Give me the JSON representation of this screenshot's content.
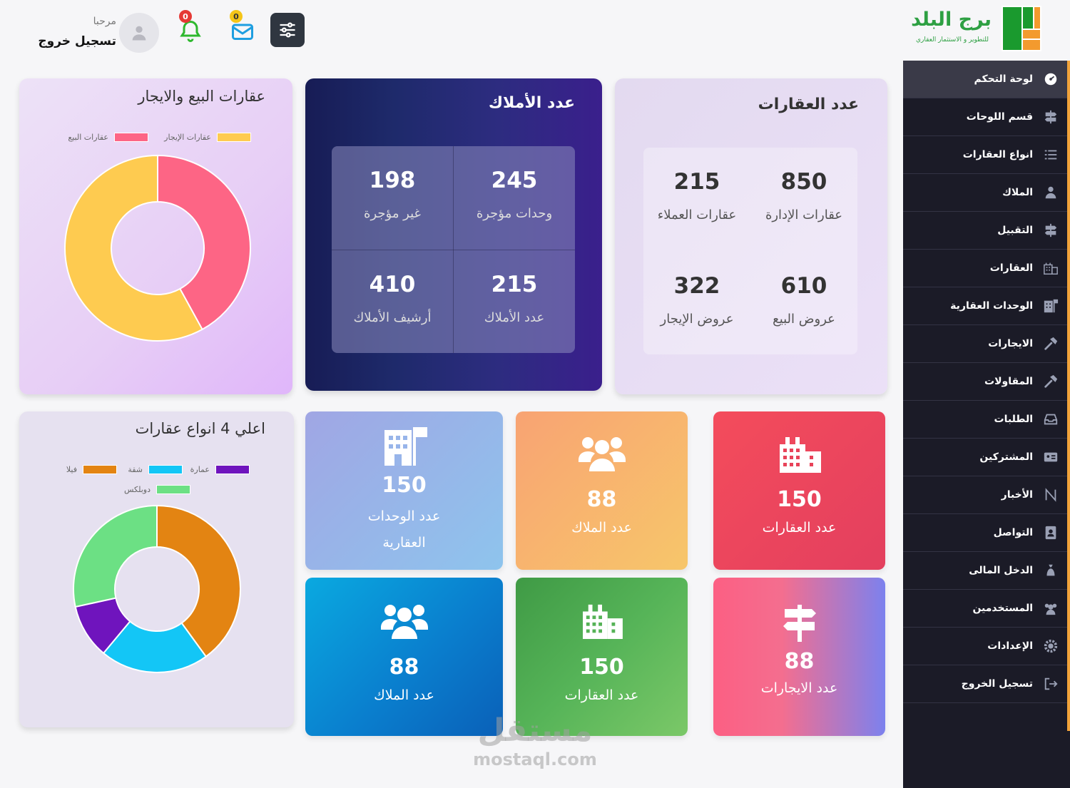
{
  "brand": {
    "name": "برج البلد",
    "tagline": "للتطوير و الاستثمار العقاري",
    "colors": {
      "green": "#2ea043",
      "orange": "#f39a2e"
    }
  },
  "header": {
    "greeting": "مرحبا",
    "logout": "تسجيل خروج",
    "notifications_count": "0",
    "messages_count": "0"
  },
  "sidebar": {
    "items": [
      {
        "label": "لوحة التحكم",
        "icon": "dashboard-icon"
      },
      {
        "label": "قسم اللوحات",
        "icon": "signpost-icon"
      },
      {
        "label": "انواع العقارات",
        "icon": "list-icon"
      },
      {
        "label": "الملاك",
        "icon": "user-icon"
      },
      {
        "label": "التقبيل",
        "icon": "signpost-icon"
      },
      {
        "label": "العقارات",
        "icon": "buildings-icon"
      },
      {
        "label": "الوحدات العقارية",
        "icon": "building-flag-icon"
      },
      {
        "label": "الايجارات",
        "icon": "hammer-icon"
      },
      {
        "label": "المقاولات",
        "icon": "hammer-icon"
      },
      {
        "label": "الطلبات",
        "icon": "inbox-icon"
      },
      {
        "label": "المشتركين",
        "icon": "id-card-icon"
      },
      {
        "label": "الأخبار",
        "icon": "news-icon"
      },
      {
        "label": "التواصل",
        "icon": "contact-book-icon"
      },
      {
        "label": "الدخل المالى",
        "icon": "money-bag-icon"
      },
      {
        "label": "المستخدمين",
        "icon": "users-icon"
      },
      {
        "label": "الإعدادات",
        "icon": "gear-icon"
      },
      {
        "label": "تسجيل الخروج",
        "icon": "logout-icon"
      }
    ]
  },
  "properties_card": {
    "title": "عدد العقارات",
    "stats": [
      {
        "value": "850",
        "label": "عقارات الإدارة"
      },
      {
        "value": "215",
        "label": "عقارات العملاء"
      },
      {
        "value": "610",
        "label": "عروض البيع"
      },
      {
        "value": "322",
        "label": "عروض الإيجار"
      }
    ]
  },
  "owners_card": {
    "title": "عدد الأملاك",
    "stats": [
      {
        "value": "245",
        "label": "وحدات مؤجرة"
      },
      {
        "value": "198",
        "label": "غير مؤجرة"
      },
      {
        "value": "215",
        "label": "عدد الأملاك"
      },
      {
        "value": "410",
        "label": "أرشيف الأملاك"
      }
    ]
  },
  "tiles": [
    {
      "value": "150",
      "label": "عدد العقارات",
      "icon": "city-icon"
    },
    {
      "value": "88",
      "label": "عدد الملاك",
      "icon": "people-icon"
    },
    {
      "value": "150",
      "label": "عدد الوحدات العقارية",
      "icon": "building-flag-icon"
    },
    {
      "value": "88",
      "label": "عدد الايجارات",
      "icon": "signpost-icon"
    },
    {
      "value": "150",
      "label": "عدد العقارات",
      "icon": "city-icon"
    },
    {
      "value": "88",
      "label": "عدد الملاك",
      "icon": "people-icon"
    }
  ],
  "chart_data": [
    {
      "type": "pie",
      "title": "عقارات البيع والايجار",
      "categories": [
        "عقارات الإيجار",
        "عقارات البيع"
      ],
      "values": [
        58,
        42
      ],
      "colors": [
        "#fecb50",
        "#fd6585"
      ],
      "legend": "top"
    },
    {
      "type": "pie",
      "title": "اعلي 4 انواع عقارات",
      "categories": [
        "فيلا",
        "شقة",
        "عمارة",
        "دوبلكس"
      ],
      "values": [
        38,
        20,
        10,
        27
      ],
      "colors": [
        "#e38412",
        "#13c6f6",
        "#6f14bd",
        "#6ce084"
      ],
      "legend": "top"
    }
  ],
  "watermark": {
    "logo": "مستقل",
    "url": "mostaql.com"
  }
}
